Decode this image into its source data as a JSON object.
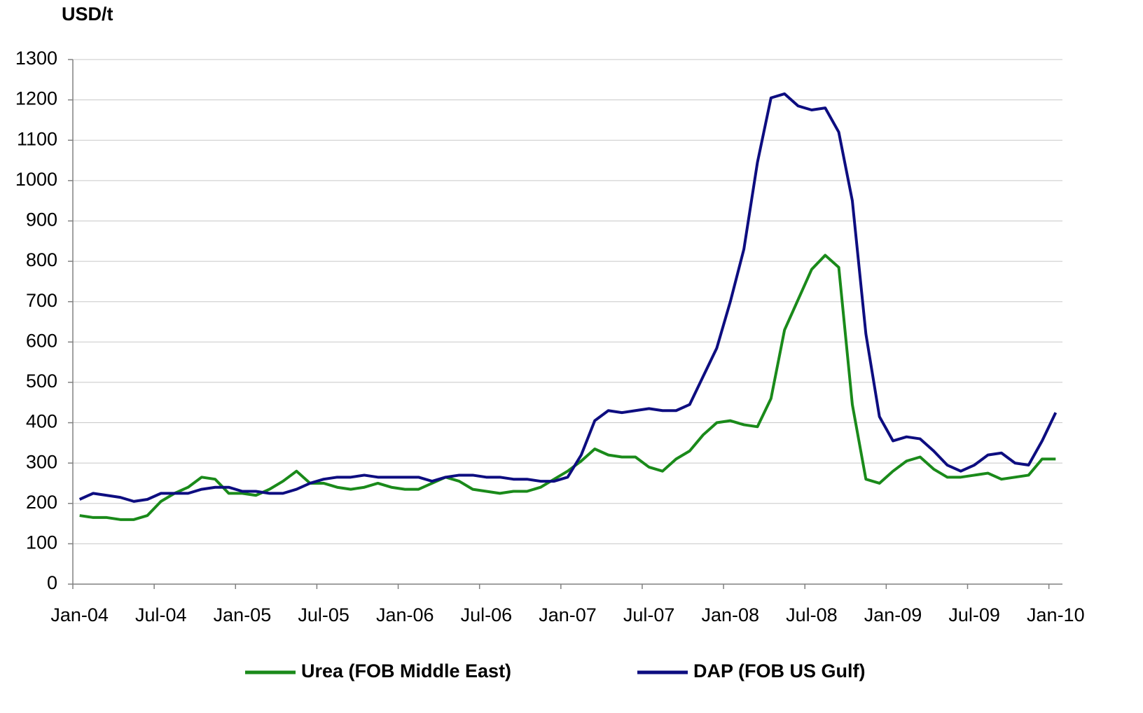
{
  "chart_data": {
    "type": "line",
    "y_label": "USD/t",
    "categories": [
      "Jan-04",
      null,
      null,
      null,
      null,
      null,
      "Jul-04",
      null,
      null,
      null,
      null,
      null,
      "Jan-05",
      null,
      null,
      null,
      null,
      null,
      "Jul-05",
      null,
      null,
      null,
      null,
      null,
      "Jan-06",
      null,
      null,
      null,
      null,
      null,
      "Jul-06",
      null,
      null,
      null,
      null,
      null,
      "Jan-07",
      null,
      null,
      null,
      null,
      null,
      "Jul-07",
      null,
      null,
      null,
      null,
      null,
      "Jan-08",
      null,
      null,
      null,
      null,
      null,
      "Jul-08",
      null,
      null,
      null,
      null,
      null,
      "Jan-09",
      null,
      null,
      null,
      null,
      null,
      "Jul-09",
      null,
      null,
      null,
      null,
      null,
      "Jan-10"
    ],
    "series": [
      {
        "name": "Urea (FOB Middle East)",
        "color": "#1a8a1a",
        "values": [
          170,
          165,
          165,
          160,
          160,
          170,
          205,
          225,
          240,
          265,
          260,
          225,
          225,
          220,
          235,
          255,
          280,
          250,
          250,
          240,
          235,
          240,
          250,
          240,
          235,
          235,
          250,
          265,
          255,
          235,
          230,
          225,
          230,
          230,
          240,
          260,
          280,
          305,
          335,
          320,
          315,
          315,
          290,
          280,
          310,
          330,
          370,
          400,
          405,
          395,
          390,
          460,
          630,
          705,
          780,
          815,
          785,
          445,
          260,
          250,
          280,
          305,
          315,
          285,
          265,
          265,
          270,
          275,
          260,
          265,
          270,
          310,
          310
        ]
      },
      {
        "name": "DAP (FOB US Gulf)",
        "color": "#0d0d80",
        "values": [
          210,
          225,
          220,
          215,
          205,
          210,
          225,
          225,
          225,
          235,
          240,
          240,
          230,
          230,
          225,
          225,
          235,
          250,
          260,
          265,
          265,
          270,
          265,
          265,
          265,
          265,
          255,
          265,
          270,
          270,
          265,
          265,
          260,
          260,
          255,
          255,
          265,
          320,
          405,
          430,
          425,
          430,
          435,
          430,
          430,
          445,
          515,
          585,
          700,
          830,
          1045,
          1205,
          1215,
          1185,
          1175,
          1180,
          1120,
          950,
          620,
          415,
          355,
          365,
          360,
          330,
          295,
          280,
          295,
          320,
          325,
          300,
          295,
          355,
          425
        ]
      }
    ],
    "ylim": [
      0,
      1300
    ],
    "yticks": [
      0,
      100,
      200,
      300,
      400,
      500,
      600,
      700,
      800,
      900,
      1000,
      1100,
      1200,
      1300
    ],
    "grid": true,
    "legend": "bottom"
  }
}
